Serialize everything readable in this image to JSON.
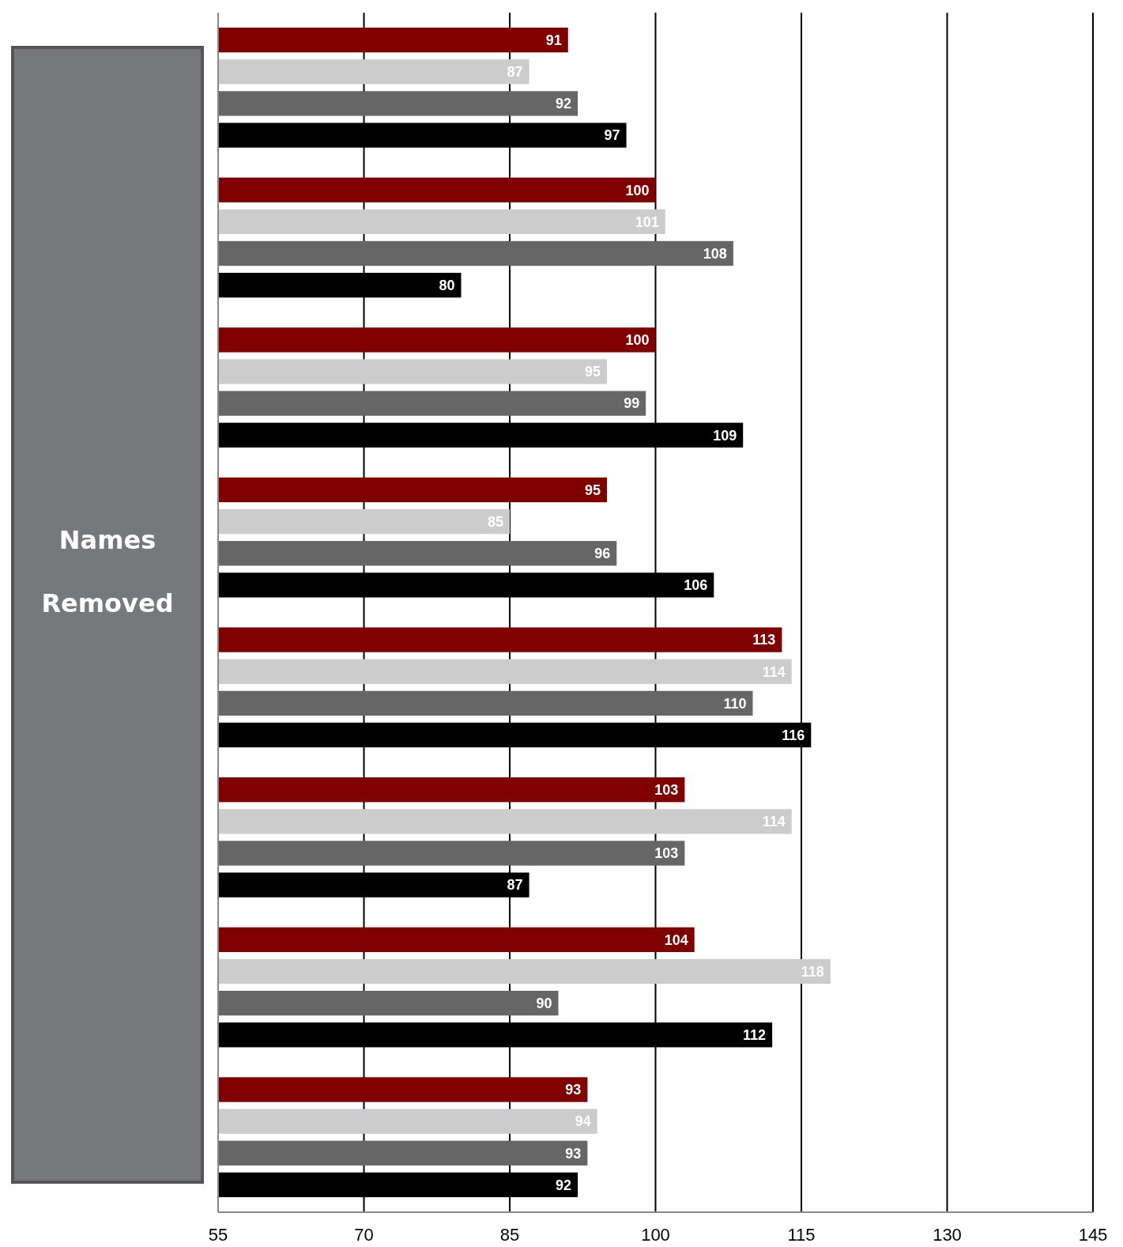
{
  "chart_data": {
    "type": "bar",
    "orientation": "horizontal",
    "categories": [
      null,
      null,
      null,
      null,
      null,
      null,
      null,
      null
    ],
    "series": [
      {
        "color": "#800000",
        "values": [
          91,
          100,
          100,
          95,
          113,
          103,
          104,
          93
        ]
      },
      {
        "color": "#cccccc",
        "values": [
          87,
          101,
          95,
          85,
          114,
          114,
          118,
          94
        ]
      },
      {
        "color": "#666666",
        "values": [
          92,
          108,
          99,
          96,
          110,
          103,
          90,
          93
        ]
      },
      {
        "color": "#000000",
        "values": [
          97,
          80,
          109,
          106,
          116,
          87,
          112,
          92
        ]
      }
    ],
    "xlim": [
      55,
      145
    ],
    "xticks": [
      55,
      70,
      85,
      100,
      115,
      130,
      145
    ],
    "grid": "x",
    "data_labels": true,
    "annotations": [
      "Names Removed"
    ]
  }
}
